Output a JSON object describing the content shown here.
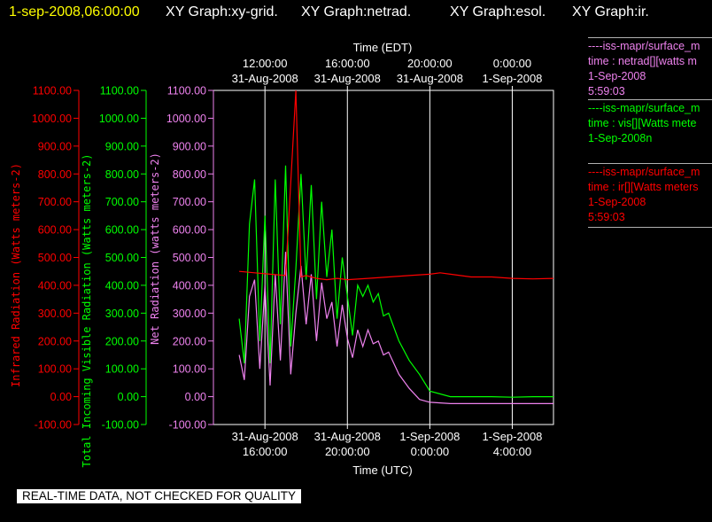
{
  "header": {
    "timestamp": "1-sep-2008,06:00:00",
    "graph_titles": [
      "XY Graph:xy-grid.",
      "XY Graph:netrad.",
      "XY Graph:esol.",
      "XY Graph:ir."
    ]
  },
  "colors": {
    "background": "#000000",
    "netrad": "#ee82ee",
    "vis": "#00ff00",
    "ir": "#ff0000",
    "grid": "#ffffff",
    "timestamp": "#ffff00",
    "text": "#ffffff"
  },
  "legend": [
    {
      "color": "#ee82ee",
      "lines": [
        "----iss-mapr/surface_m",
        "time : netrad[][watts m",
        "1-Sep-2008",
        "5:59:03"
      ]
    },
    {
      "color": "#00ff00",
      "lines": [
        "----iss-mapr/surface_m",
        "time : vis[][Watts mete",
        "1-Sep-2008n"
      ]
    },
    {
      "color": "#ff0000",
      "lines": [
        "----iss-mapr/surface_m",
        "time : ir[][Watts meters",
        "1-Sep-2008",
        "5:59:03"
      ]
    }
  ],
  "footer_note": "REAL-TIME DATA, NOT CHECKED FOR QUALITY",
  "chart_data": {
    "type": "line",
    "top_axis": {
      "title": "Time (EDT)",
      "ticks": [
        {
          "time": "12:00:00",
          "date": "31-Aug-2008"
        },
        {
          "time": "16:00:00",
          "date": "31-Aug-2008"
        },
        {
          "time": "20:00:00",
          "date": "31-Aug-2008"
        },
        {
          "time": "0:00:00",
          "date": "1-Sep-2008"
        }
      ]
    },
    "bottom_axis": {
      "title": "Time (UTC)",
      "ticks": [
        {
          "date": "31-Aug-2008",
          "time": "16:00:00"
        },
        {
          "date": "31-Aug-2008",
          "time": "20:00:00"
        },
        {
          "date": "1-Sep-2008",
          "time": "0:00:00"
        },
        {
          "date": "1-Sep-2008",
          "time": "4:00:00"
        }
      ],
      "range_hours_utc": [
        "2008-08-31 13:30",
        "2008-09-01 06:00"
      ]
    },
    "y_axes": [
      {
        "label": "Infrared Radiation (Watts meters-2)",
        "color": "#ff0000",
        "ylim": [
          -100,
          1100
        ]
      },
      {
        "label": "Total Incoming Visible Radiation (Watts meters-2)",
        "color": "#00ff00",
        "ylim": [
          -100,
          1100
        ]
      },
      {
        "label": "Net Radiation (watts meters-2)",
        "color": "#ee82ee",
        "ylim": [
          -100,
          1100
        ]
      }
    ],
    "y_ticks": [
      1100,
      1000,
      900,
      800,
      700,
      600,
      500,
      400,
      300,
      200,
      100,
      0,
      -100
    ],
    "series": [
      {
        "color": "#ff0000",
        "x": [
          "2008-08-31 14:45",
          "2008-08-31 15:30",
          "2008-08-31 16:15",
          "2008-08-31 17:00",
          "2008-08-31 17:30",
          "2008-08-31 17:45",
          "2008-08-31 18:00",
          "2008-08-31 18:30",
          "2008-08-31 19:00",
          "2008-08-31 19:30",
          "2008-08-31 20:00",
          "2008-08-31 21:00",
          "2008-08-31 22:00",
          "2008-08-31 23:00",
          "2008-09-01 00:00",
          "2008-09-01 00:30",
          "2008-09-01 01:00",
          "2008-09-01 02:00",
          "2008-09-01 03:00",
          "2008-09-01 04:00",
          "2008-09-01 05:00",
          "2008-09-01 06:00"
        ],
        "values": [
          450,
          445,
          440,
          435,
          1100,
          430,
          435,
          425,
          420,
          425,
          420,
          425,
          430,
          435,
          440,
          445,
          440,
          430,
          430,
          425,
          423,
          425
        ]
      },
      {
        "color": "#00ff00",
        "x": [
          "2008-08-31 14:45",
          "2008-08-31 15:00",
          "2008-08-31 15:15",
          "2008-08-31 15:30",
          "2008-08-31 15:45",
          "2008-08-31 16:00",
          "2008-08-31 16:15",
          "2008-08-31 16:30",
          "2008-08-31 16:45",
          "2008-08-31 17:00",
          "2008-08-31 17:15",
          "2008-08-31 17:30",
          "2008-08-31 17:45",
          "2008-08-31 18:00",
          "2008-08-31 18:15",
          "2008-08-31 18:30",
          "2008-08-31 18:45",
          "2008-08-31 19:00",
          "2008-08-31 19:15",
          "2008-08-31 19:30",
          "2008-08-31 19:45",
          "2008-08-31 20:00",
          "2008-08-31 20:15",
          "2008-08-31 20:30",
          "2008-08-31 20:45",
          "2008-08-31 21:00",
          "2008-08-31 21:15",
          "2008-08-31 21:30",
          "2008-08-31 21:45",
          "2008-08-31 22:00",
          "2008-08-31 22:30",
          "2008-08-31 23:00",
          "2008-08-31 23:30",
          "2008-09-01 00:00",
          "2008-09-01 01:00",
          "2008-09-01 02:00",
          "2008-09-01 03:00",
          "2008-09-01 04:00",
          "2008-09-01 05:00",
          "2008-09-01 06:00"
        ],
        "values": [
          280,
          120,
          620,
          780,
          200,
          650,
          120,
          780,
          260,
          830,
          180,
          460,
          800,
          420,
          760,
          350,
          700,
          430,
          600,
          280,
          500,
          360,
          220,
          400,
          360,
          400,
          340,
          370,
          290,
          300,
          200,
          130,
          80,
          20,
          0,
          0,
          0,
          -2,
          0,
          0
        ]
      },
      {
        "color": "#ee82ee",
        "x": [
          "2008-08-31 14:45",
          "2008-08-31 15:00",
          "2008-08-31 15:15",
          "2008-08-31 15:30",
          "2008-08-31 15:45",
          "2008-08-31 16:00",
          "2008-08-31 16:15",
          "2008-08-31 16:30",
          "2008-08-31 16:45",
          "2008-08-31 17:00",
          "2008-08-31 17:15",
          "2008-08-31 17:30",
          "2008-08-31 17:45",
          "2008-08-31 18:00",
          "2008-08-31 18:15",
          "2008-08-31 18:30",
          "2008-08-31 18:45",
          "2008-08-31 19:00",
          "2008-08-31 19:15",
          "2008-08-31 19:30",
          "2008-08-31 19:45",
          "2008-08-31 20:00",
          "2008-08-31 20:15",
          "2008-08-31 20:30",
          "2008-08-31 20:45",
          "2008-08-31 21:00",
          "2008-08-31 21:15",
          "2008-08-31 21:30",
          "2008-08-31 21:45",
          "2008-08-31 22:00",
          "2008-08-31 22:30",
          "2008-08-31 23:00",
          "2008-08-31 23:30",
          "2008-09-01 00:00",
          "2008-09-01 01:00",
          "2008-09-01 02:00",
          "2008-09-01 03:00",
          "2008-09-01 04:00",
          "2008-09-01 05:00",
          "2008-09-01 06:00"
        ],
        "values": [
          150,
          60,
          360,
          420,
          100,
          400,
          40,
          440,
          130,
          520,
          80,
          300,
          470,
          260,
          440,
          200,
          410,
          280,
          340,
          180,
          330,
          210,
          140,
          240,
          180,
          240,
          190,
          200,
          150,
          160,
          80,
          30,
          -10,
          -20,
          -25,
          -25,
          -25,
          -25,
          -25,
          -25
        ]
      }
    ]
  }
}
